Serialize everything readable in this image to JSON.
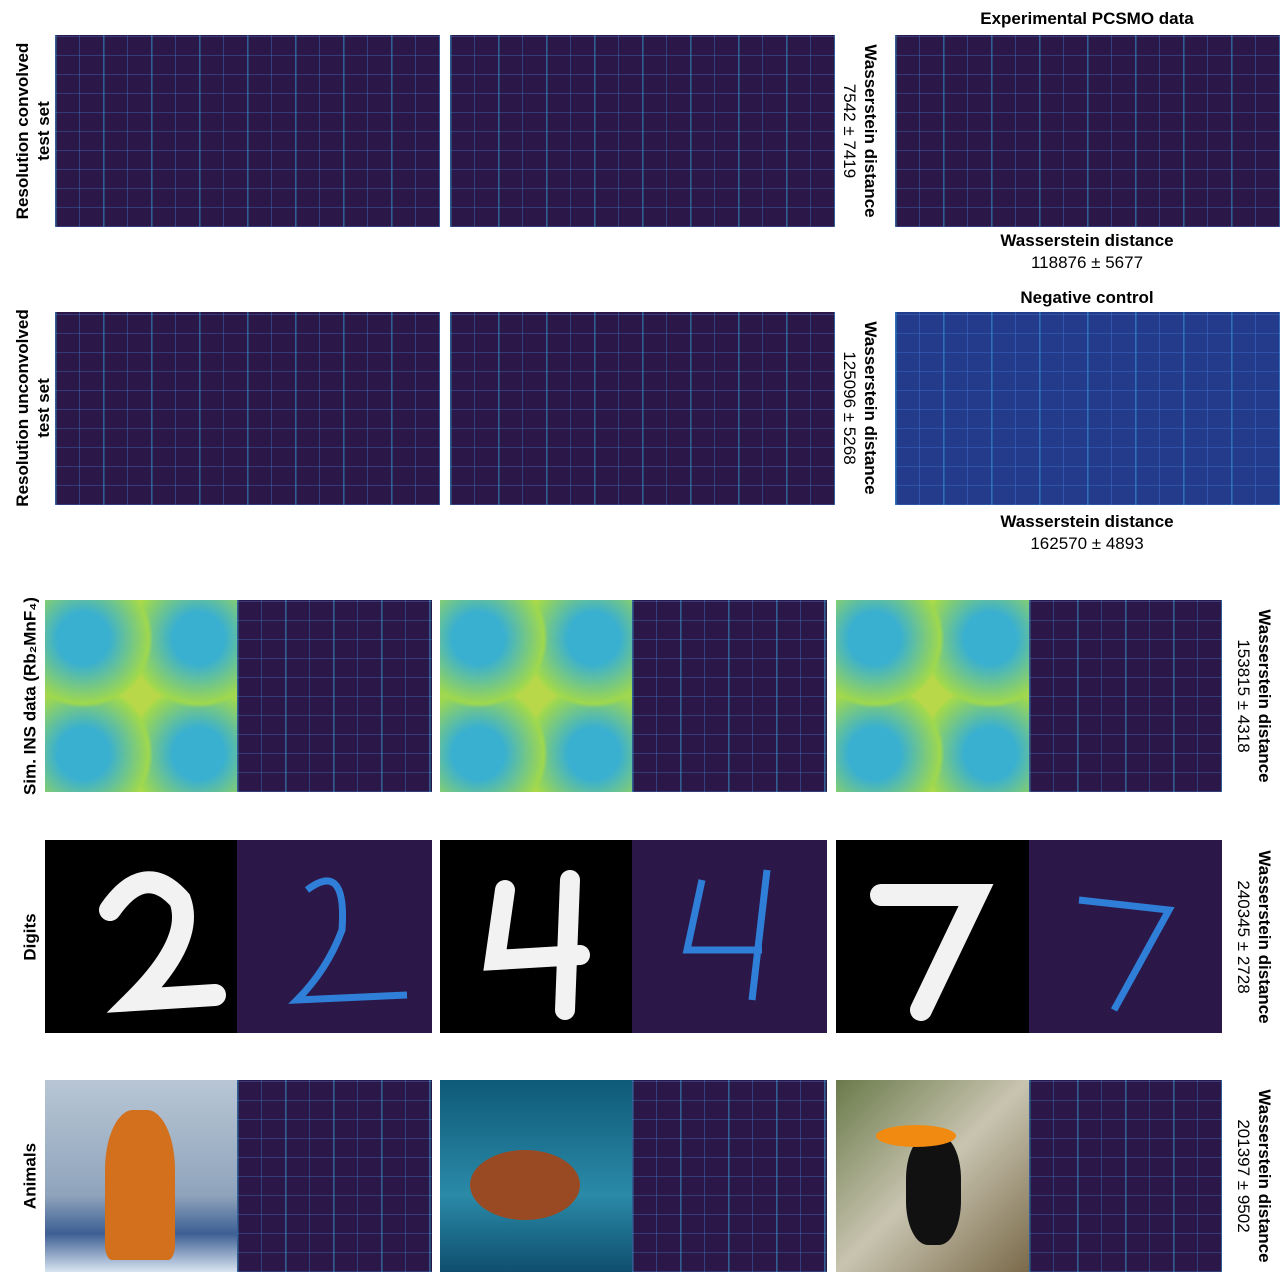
{
  "rows": [
    {
      "label": "Resolution convolved test set",
      "distance": {
        "title": "Wasserstein distance",
        "value": "7542 ± 7419"
      }
    },
    {
      "label": "Resolution unconvolved test set",
      "distance": {
        "title": "Wasserstein distance",
        "value": "125096 ± 5268"
      }
    },
    {
      "label": "Sim. INS data (Rb₂MnF₄)",
      "distance": {
        "title": "Wasserstein distance",
        "value": "153815 ± 4318"
      }
    },
    {
      "label": "Digits",
      "distance": {
        "title": "Wasserstein distance",
        "value": "240345 ± 2728"
      }
    },
    {
      "label": "Animals",
      "distance": {
        "title": "Wasserstein distance",
        "value": "201397 ± 9502"
      }
    }
  ],
  "side_panels": [
    {
      "title": "Experimental PCSMO data",
      "distance": {
        "title": "Wasserstein distance",
        "value": "118876 ± 5677"
      }
    },
    {
      "title": "Negative control",
      "distance": {
        "title": "Wasserstein distance",
        "value": "162570 ± 4893"
      }
    }
  ]
}
